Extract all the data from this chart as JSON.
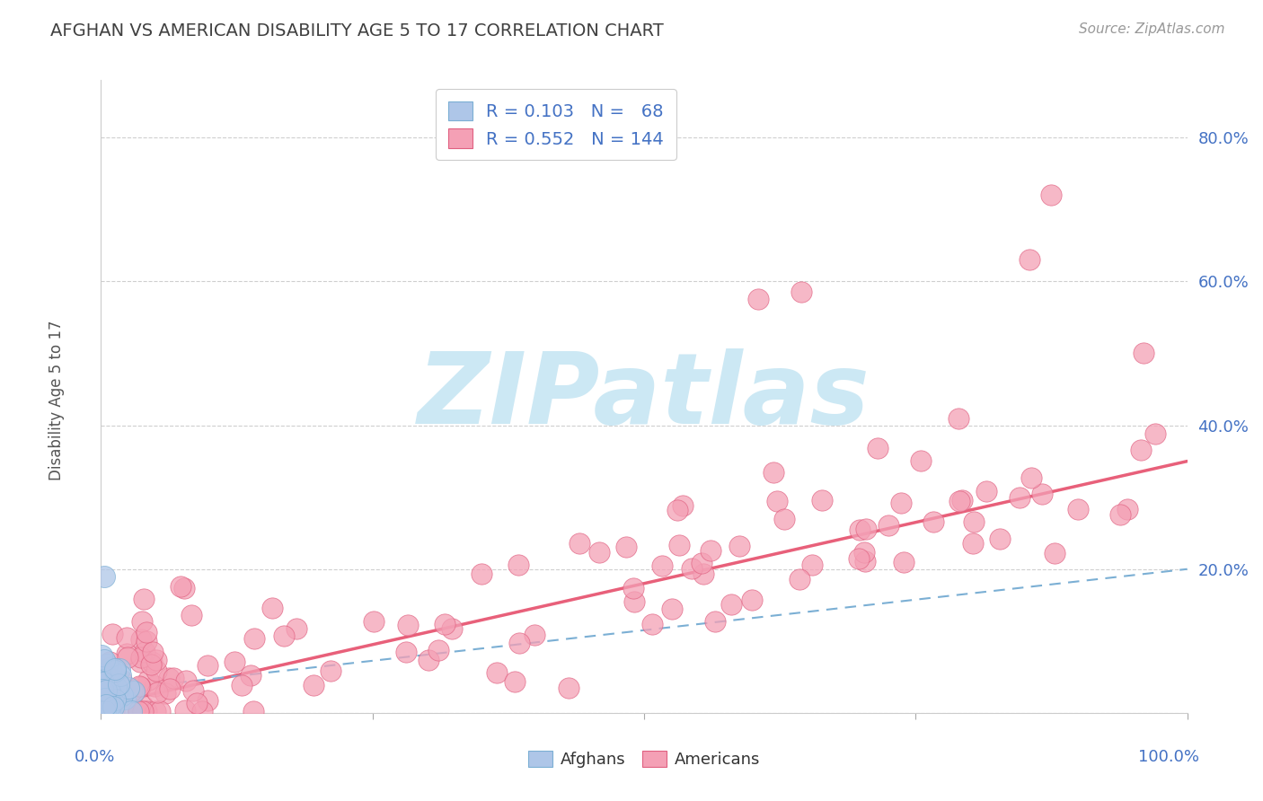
{
  "title": "AFGHAN VS AMERICAN DISABILITY AGE 5 TO 17 CORRELATION CHART",
  "source_text": "Source: ZipAtlas.com",
  "ylabel": "Disability Age 5 to 17",
  "ytick_values": [
    0.0,
    0.2,
    0.4,
    0.6,
    0.8
  ],
  "ytick_labels": [
    "",
    "20.0%",
    "40.0%",
    "60.0%",
    "80.0%"
  ],
  "xlim": [
    0.0,
    1.0
  ],
  "ylim": [
    0.0,
    0.88
  ],
  "afghan_color": "#aec6e8",
  "american_color": "#f4a0b5",
  "afghan_edge_color": "#7bafd4",
  "american_edge_color": "#e06080",
  "afghan_line_color": "#7bafd4",
  "american_line_color": "#e8607a",
  "background_color": "#ffffff",
  "watermark_color": "#cce8f4",
  "title_color": "#404040",
  "legend_text_color": "#4472c4",
  "axis_label_color": "#4472c4",
  "grid_color": "#bbbbbb",
  "seed": 42
}
